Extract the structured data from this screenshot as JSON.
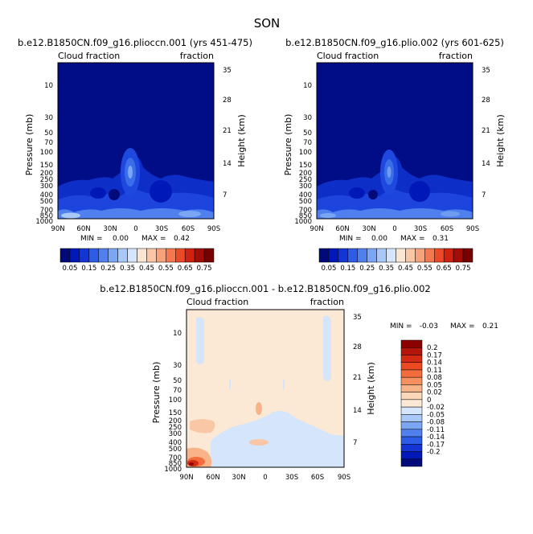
{
  "page": {
    "season": "SON"
  },
  "panels": [
    {
      "id": "p1",
      "title": "b.e12.B1850CN.f09_g16.pliocсn.001 (yrs 451-475)",
      "left_label": "Cloud fraction",
      "right_label": "fraction",
      "ylabel": "Pressure (mb)",
      "ylabel_right": "Height (km)",
      "min_label": "MIN =",
      "min_value": "0.00",
      "max_label": "MAX =",
      "max_value": "0.42"
    },
    {
      "id": "p2",
      "title": "b.e12.B1850CN.f09_g16.plio.002 (yrs 601-625)",
      "left_label": "Cloud fraction",
      "right_label": "fraction",
      "ylabel": "Pressure (mb)",
      "ylabel_right": "Height (km)",
      "min_label": "MIN =",
      "min_value": "0.00",
      "max_label": "MAX =",
      "max_value": "0.31"
    },
    {
      "id": "p3",
      "title": "b.e12.B1850CN.f09_g16.pliocсn.001 - b.e12.B1850CN.f09_g16.plio.002",
      "left_label": "Cloud fraction",
      "right_label": "fraction",
      "ylabel": "Pressure (mb)",
      "ylabel_right": "Height (km)",
      "min_label": "MIN =",
      "min_value": "-0.03",
      "max_label": "MAX =",
      "max_value": "0.21"
    }
  ],
  "colorbars": {
    "absolute": {
      "labels": [
        "0.05",
        "0.15",
        "0.25",
        "0.35",
        "0.45",
        "0.55",
        "0.65",
        "0.75"
      ],
      "colors": [
        "#000a78",
        "#0018b8",
        "#1435d6",
        "#2e5ce6",
        "#4f80ee",
        "#7ba6f3",
        "#a8c8f8",
        "#d5e5fb",
        "#fbe6d3",
        "#f9c6a6",
        "#f6a27a",
        "#f3774f",
        "#ec4a26",
        "#cf2210",
        "#a20d07",
        "#780000"
      ]
    },
    "difference": {
      "labels": [
        "0.2",
        "0.17",
        "0.14",
        "0.11",
        "0.08",
        "0.05",
        "0.02",
        "0",
        "-0.02",
        "-0.05",
        "-0.08",
        "-0.11",
        "-0.14",
        "-0.17",
        "-0.2"
      ],
      "colors": [
        "#8c0000",
        "#b3150a",
        "#d42a14",
        "#eb4a23",
        "#f36c3c",
        "#f7905f",
        "#f9b389",
        "#fbd7b9",
        "#fbe9d6",
        "#d5e5fb",
        "#a8c8f8",
        "#7ba6f3",
        "#4f80ee",
        "#2e5ce6",
        "#1435d6",
        "#0018b8",
        "#000a78"
      ]
    }
  },
  "chart_data": [
    {
      "type": "heatmap",
      "title": "b.e12.B1850CN.f09_g16.pliocсn.001 (yrs 451-475)",
      "xlabel": "",
      "ylabel": "Pressure (mb)",
      "x_ticks": [
        "90N",
        "60N",
        "30N",
        "0",
        "30S",
        "60S",
        "90S"
      ],
      "y_ticks": [
        "10",
        "30",
        "50",
        "70",
        "100",
        "150",
        "200",
        "250",
        "300",
        "400",
        "500",
        "700",
        "850",
        "1000"
      ],
      "y2_ticks": [
        "35",
        "28",
        "21",
        "14",
        "7"
      ],
      "min": 0.0,
      "max": 0.42
    },
    {
      "type": "heatmap",
      "title": "b.e12.B1850CN.f09_g16.plio.002 (yrs 601-625)",
      "xlabel": "",
      "ylabel": "Pressure (mb)",
      "x_ticks": [
        "90N",
        "60N",
        "30N",
        "0",
        "30S",
        "60S",
        "90S"
      ],
      "y_ticks": [
        "10",
        "30",
        "50",
        "70",
        "100",
        "150",
        "200",
        "250",
        "300",
        "400",
        "500",
        "700",
        "850",
        "1000"
      ],
      "y2_ticks": [
        "35",
        "28",
        "21",
        "14",
        "7"
      ],
      "min": 0.0,
      "max": 0.31
    },
    {
      "type": "heatmap",
      "title": "b.e12.B1850CN.f09_g16.pliocсn.001 - b.e12.B1850CN.f09_g16.plio.002",
      "xlabel": "",
      "ylabel": "Pressure (mb)",
      "x_ticks": [
        "90N",
        "60N",
        "30N",
        "0",
        "30S",
        "60S",
        "90S"
      ],
      "y_ticks": [
        "10",
        "30",
        "50",
        "70",
        "100",
        "150",
        "200",
        "250",
        "300",
        "400",
        "500",
        "700",
        "850",
        "1000"
      ],
      "y2_ticks": [
        "35",
        "28",
        "21",
        "14",
        "7"
      ],
      "min": -0.03,
      "max": 0.21
    }
  ]
}
